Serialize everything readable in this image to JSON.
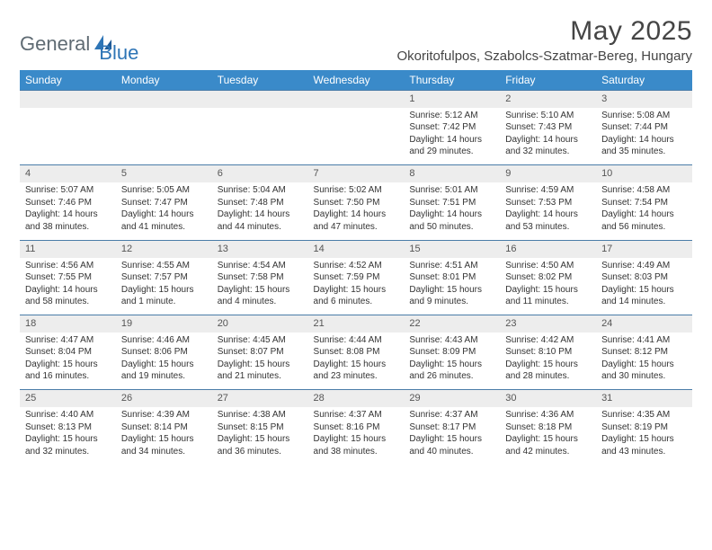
{
  "brand": {
    "part1": "General",
    "part2": "Blue"
  },
  "title": "May 2025",
  "location": "Okoritofulpos, Szabolcs-Szatmar-Bereg, Hungary",
  "colors": {
    "header_bg": "#3a8ac9",
    "header_text": "#ffffff",
    "daynum_bg": "#ededed",
    "daynum_border": "#4a7ca8",
    "body_text": "#333333",
    "logo_gray": "#5f6b73",
    "logo_blue": "#2e75b6"
  },
  "weekdays": [
    "Sunday",
    "Monday",
    "Tuesday",
    "Wednesday",
    "Thursday",
    "Friday",
    "Saturday"
  ],
  "weeks": [
    [
      null,
      null,
      null,
      null,
      {
        "n": "1",
        "sr": "Sunrise: 5:12 AM",
        "ss": "Sunset: 7:42 PM",
        "d1": "Daylight: 14 hours",
        "d2": "and 29 minutes."
      },
      {
        "n": "2",
        "sr": "Sunrise: 5:10 AM",
        "ss": "Sunset: 7:43 PM",
        "d1": "Daylight: 14 hours",
        "d2": "and 32 minutes."
      },
      {
        "n": "3",
        "sr": "Sunrise: 5:08 AM",
        "ss": "Sunset: 7:44 PM",
        "d1": "Daylight: 14 hours",
        "d2": "and 35 minutes."
      }
    ],
    [
      {
        "n": "4",
        "sr": "Sunrise: 5:07 AM",
        "ss": "Sunset: 7:46 PM",
        "d1": "Daylight: 14 hours",
        "d2": "and 38 minutes."
      },
      {
        "n": "5",
        "sr": "Sunrise: 5:05 AM",
        "ss": "Sunset: 7:47 PM",
        "d1": "Daylight: 14 hours",
        "d2": "and 41 minutes."
      },
      {
        "n": "6",
        "sr": "Sunrise: 5:04 AM",
        "ss": "Sunset: 7:48 PM",
        "d1": "Daylight: 14 hours",
        "d2": "and 44 minutes."
      },
      {
        "n": "7",
        "sr": "Sunrise: 5:02 AM",
        "ss": "Sunset: 7:50 PM",
        "d1": "Daylight: 14 hours",
        "d2": "and 47 minutes."
      },
      {
        "n": "8",
        "sr": "Sunrise: 5:01 AM",
        "ss": "Sunset: 7:51 PM",
        "d1": "Daylight: 14 hours",
        "d2": "and 50 minutes."
      },
      {
        "n": "9",
        "sr": "Sunrise: 4:59 AM",
        "ss": "Sunset: 7:53 PM",
        "d1": "Daylight: 14 hours",
        "d2": "and 53 minutes."
      },
      {
        "n": "10",
        "sr": "Sunrise: 4:58 AM",
        "ss": "Sunset: 7:54 PM",
        "d1": "Daylight: 14 hours",
        "d2": "and 56 minutes."
      }
    ],
    [
      {
        "n": "11",
        "sr": "Sunrise: 4:56 AM",
        "ss": "Sunset: 7:55 PM",
        "d1": "Daylight: 14 hours",
        "d2": "and 58 minutes."
      },
      {
        "n": "12",
        "sr": "Sunrise: 4:55 AM",
        "ss": "Sunset: 7:57 PM",
        "d1": "Daylight: 15 hours",
        "d2": "and 1 minute."
      },
      {
        "n": "13",
        "sr": "Sunrise: 4:54 AM",
        "ss": "Sunset: 7:58 PM",
        "d1": "Daylight: 15 hours",
        "d2": "and 4 minutes."
      },
      {
        "n": "14",
        "sr": "Sunrise: 4:52 AM",
        "ss": "Sunset: 7:59 PM",
        "d1": "Daylight: 15 hours",
        "d2": "and 6 minutes."
      },
      {
        "n": "15",
        "sr": "Sunrise: 4:51 AM",
        "ss": "Sunset: 8:01 PM",
        "d1": "Daylight: 15 hours",
        "d2": "and 9 minutes."
      },
      {
        "n": "16",
        "sr": "Sunrise: 4:50 AM",
        "ss": "Sunset: 8:02 PM",
        "d1": "Daylight: 15 hours",
        "d2": "and 11 minutes."
      },
      {
        "n": "17",
        "sr": "Sunrise: 4:49 AM",
        "ss": "Sunset: 8:03 PM",
        "d1": "Daylight: 15 hours",
        "d2": "and 14 minutes."
      }
    ],
    [
      {
        "n": "18",
        "sr": "Sunrise: 4:47 AM",
        "ss": "Sunset: 8:04 PM",
        "d1": "Daylight: 15 hours",
        "d2": "and 16 minutes."
      },
      {
        "n": "19",
        "sr": "Sunrise: 4:46 AM",
        "ss": "Sunset: 8:06 PM",
        "d1": "Daylight: 15 hours",
        "d2": "and 19 minutes."
      },
      {
        "n": "20",
        "sr": "Sunrise: 4:45 AM",
        "ss": "Sunset: 8:07 PM",
        "d1": "Daylight: 15 hours",
        "d2": "and 21 minutes."
      },
      {
        "n": "21",
        "sr": "Sunrise: 4:44 AM",
        "ss": "Sunset: 8:08 PM",
        "d1": "Daylight: 15 hours",
        "d2": "and 23 minutes."
      },
      {
        "n": "22",
        "sr": "Sunrise: 4:43 AM",
        "ss": "Sunset: 8:09 PM",
        "d1": "Daylight: 15 hours",
        "d2": "and 26 minutes."
      },
      {
        "n": "23",
        "sr": "Sunrise: 4:42 AM",
        "ss": "Sunset: 8:10 PM",
        "d1": "Daylight: 15 hours",
        "d2": "and 28 minutes."
      },
      {
        "n": "24",
        "sr": "Sunrise: 4:41 AM",
        "ss": "Sunset: 8:12 PM",
        "d1": "Daylight: 15 hours",
        "d2": "and 30 minutes."
      }
    ],
    [
      {
        "n": "25",
        "sr": "Sunrise: 4:40 AM",
        "ss": "Sunset: 8:13 PM",
        "d1": "Daylight: 15 hours",
        "d2": "and 32 minutes."
      },
      {
        "n": "26",
        "sr": "Sunrise: 4:39 AM",
        "ss": "Sunset: 8:14 PM",
        "d1": "Daylight: 15 hours",
        "d2": "and 34 minutes."
      },
      {
        "n": "27",
        "sr": "Sunrise: 4:38 AM",
        "ss": "Sunset: 8:15 PM",
        "d1": "Daylight: 15 hours",
        "d2": "and 36 minutes."
      },
      {
        "n": "28",
        "sr": "Sunrise: 4:37 AM",
        "ss": "Sunset: 8:16 PM",
        "d1": "Daylight: 15 hours",
        "d2": "and 38 minutes."
      },
      {
        "n": "29",
        "sr": "Sunrise: 4:37 AM",
        "ss": "Sunset: 8:17 PM",
        "d1": "Daylight: 15 hours",
        "d2": "and 40 minutes."
      },
      {
        "n": "30",
        "sr": "Sunrise: 4:36 AM",
        "ss": "Sunset: 8:18 PM",
        "d1": "Daylight: 15 hours",
        "d2": "and 42 minutes."
      },
      {
        "n": "31",
        "sr": "Sunrise: 4:35 AM",
        "ss": "Sunset: 8:19 PM",
        "d1": "Daylight: 15 hours",
        "d2": "and 43 minutes."
      }
    ]
  ]
}
